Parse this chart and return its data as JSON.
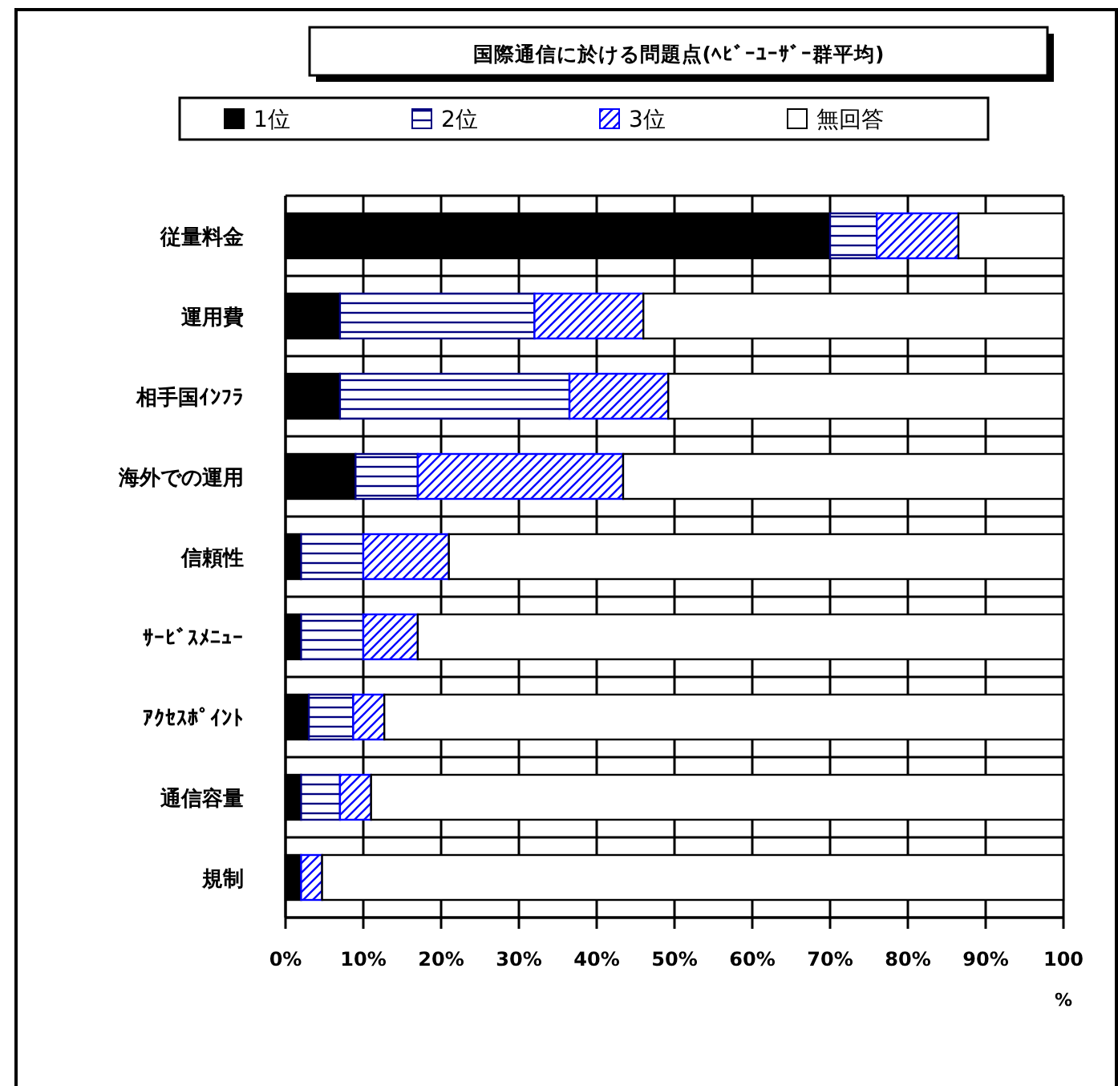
{
  "chart_data": {
    "type": "bar",
    "orientation": "horizontal",
    "stacked": true,
    "title": "国際通信に於ける問題点(ﾍﾋﾞｰﾕｰｻﾞｰ群平均)",
    "xlabel": "%",
    "categories": [
      "従量料金",
      "運用費",
      "相手国ｲﾝﾌﾗ",
      "海外での運用",
      "信頼性",
      "ｻｰﾋﾞｽﾒﾆｭｰ",
      "ｱｸｾｽﾎﾟｲﾝﾄ",
      "通信容量",
      "規制"
    ],
    "series": [
      {
        "name": "1位",
        "color": "#000000",
        "values": [
          70,
          7,
          7,
          9,
          2,
          2,
          3,
          2,
          2
        ]
      },
      {
        "name": "2位",
        "color": "#000080",
        "values": [
          6,
          25,
          29.5,
          8,
          8,
          8,
          5.7,
          5,
          0
        ]
      },
      {
        "name": "3位",
        "color": "#0000ff",
        "values": [
          10.5,
          14,
          12.7,
          26.4,
          11,
          7,
          4,
          4,
          2.7
        ]
      },
      {
        "name": "無回答",
        "color": "#ffffff",
        "values": [
          13.5,
          54,
          50.8,
          56.6,
          79,
          83,
          87.3,
          89,
          95.3
        ]
      }
    ],
    "xlim": [
      0,
      100
    ],
    "xticks": [
      {
        "value": 0,
        "label": "0%"
      },
      {
        "value": 10,
        "label": "10%"
      },
      {
        "value": 20,
        "label": "20%"
      },
      {
        "value": 30,
        "label": "30%"
      },
      {
        "value": 40,
        "label": "40%"
      },
      {
        "value": 50,
        "label": "50%"
      },
      {
        "value": 60,
        "label": "60%"
      },
      {
        "value": 70,
        "label": "70%"
      },
      {
        "value": 80,
        "label": "80%"
      },
      {
        "value": 90,
        "label": "90%"
      },
      100
    ],
    "grid": true,
    "legend": "top"
  }
}
